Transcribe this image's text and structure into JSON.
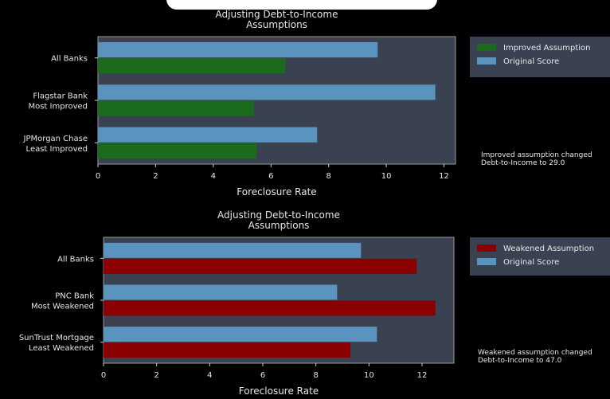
{
  "chart_data": [
    {
      "type": "bar",
      "orientation": "horizontal",
      "title": "Adjusting Debt-to-Income\nAssumptions",
      "xlabel": "Foreclosure Rate",
      "ylabel": "",
      "xlim": [
        0,
        12.4
      ],
      "xticks": [
        0,
        2,
        4,
        6,
        8,
        10,
        12
      ],
      "categories": [
        "All Banks",
        "Flagstar Bank\nMost Improved",
        "JPMorgan Chase\nLeast Improved"
      ],
      "series": [
        {
          "name": "Original Score",
          "color": "#5a93bd",
          "values": [
            9.7,
            11.7,
            7.6
          ]
        },
        {
          "name": "Improved Assumption",
          "color": "#1c6b1c",
          "values": [
            6.5,
            5.4,
            5.5
          ]
        }
      ],
      "legend": {
        "placement": "right-top",
        "order": [
          "Improved Assumption",
          "Original Score"
        ]
      },
      "annotation": "Improved assumption changed\nDebt-to-Income to 29.0"
    },
    {
      "type": "bar",
      "orientation": "horizontal",
      "title": "Adjusting Debt-to-Income\nAssumptions",
      "xlabel": "Foreclosure Rate",
      "ylabel": "",
      "xlim": [
        0,
        13.2
      ],
      "xticks": [
        0,
        2,
        4,
        6,
        8,
        10,
        12
      ],
      "categories": [
        "All Banks",
        "PNC Bank\nMost Weakened",
        "SunTrust Mortgage\nLeast Weakened"
      ],
      "series": [
        {
          "name": "Original Score",
          "color": "#5a93bd",
          "values": [
            9.7,
            8.8,
            10.3
          ]
        },
        {
          "name": "Weakened Assumption",
          "color": "#8b0000",
          "values": [
            11.8,
            12.5,
            9.3
          ]
        }
      ],
      "legend": {
        "placement": "right-top",
        "order": [
          "Weakened Assumption",
          "Original Score"
        ]
      },
      "annotation": "Weakened assumption changed\nDebt-to-Income to 47.0"
    }
  ],
  "colors": {
    "plot_bg": "#3a4150",
    "plot_border": "#9a9a9a",
    "page_bg": "#000000"
  }
}
